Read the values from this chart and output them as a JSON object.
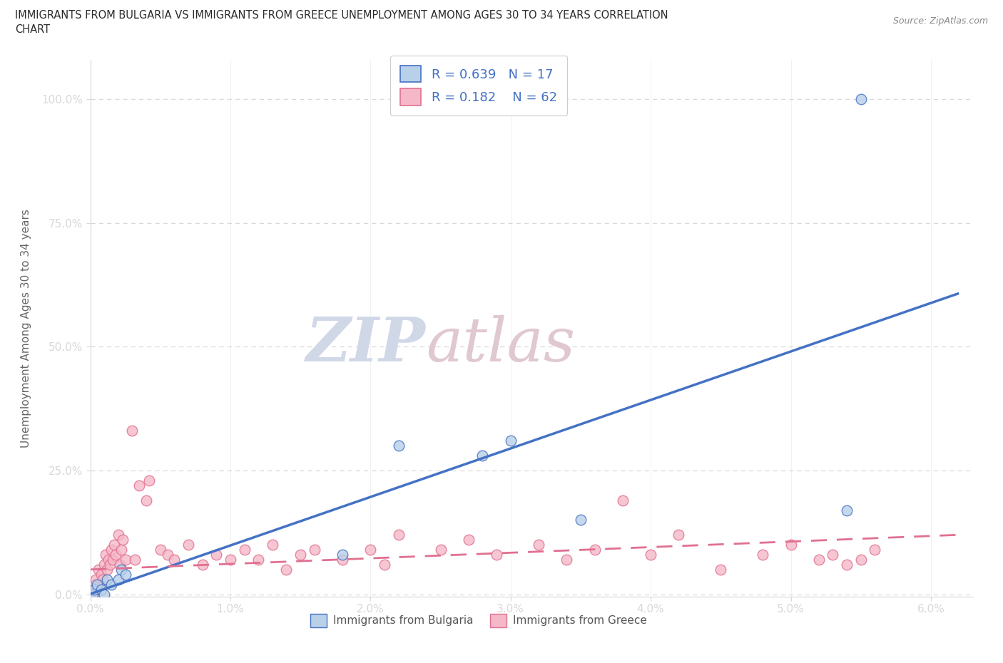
{
  "title_line1": "IMMIGRANTS FROM BULGARIA VS IMMIGRANTS FROM GREECE UNEMPLOYMENT AMONG AGES 30 TO 34 YEARS CORRELATION",
  "title_line2": "CHART",
  "source_text": "Source: ZipAtlas.com",
  "ylabel": "Unemployment Among Ages 30 to 34 years",
  "xlim": [
    0.0,
    0.063
  ],
  "ylim": [
    -0.005,
    1.08
  ],
  "xticks": [
    0.0,
    0.01,
    0.02,
    0.03,
    0.04,
    0.05,
    0.06
  ],
  "xticklabels": [
    "0.0%",
    "1.0%",
    "2.0%",
    "3.0%",
    "4.0%",
    "5.0%",
    "6.0%"
  ],
  "yticks": [
    0.0,
    0.25,
    0.5,
    0.75,
    1.0
  ],
  "yticklabels": [
    "0.0%",
    "25.0%",
    "50.0%",
    "75.0%",
    "100.0%"
  ],
  "bulgaria_face_color": "#b8d0e8",
  "bulgaria_edge_color": "#4472c4",
  "greece_face_color": "#f5b8c8",
  "greece_edge_color": "#e07090",
  "bulgaria_line_color": "#4472c4",
  "greece_line_color": "#e07090",
  "legend_r_bulgaria": "0.639",
  "legend_n_bulgaria": "17",
  "legend_r_greece": "0.182",
  "legend_n_greece": "62",
  "background_color": "#ffffff",
  "grid_color": "#d8d8d8",
  "tick_label_color": "#666666",
  "watermark_color": "#d0d8e8",
  "watermark_color2": "#e0c8d0",
  "bulgaria_x": [
    0.0002,
    0.0003,
    0.0005,
    0.0008,
    0.001,
    0.0012,
    0.0015,
    0.002,
    0.0022,
    0.0025,
    0.018,
    0.022,
    0.028,
    0.03,
    0.035,
    0.054,
    0.055
  ],
  "bulgaria_y": [
    0.0,
    0.01,
    0.02,
    0.01,
    0.0,
    0.03,
    0.02,
    0.03,
    0.05,
    0.04,
    0.08,
    0.3,
    0.28,
    0.31,
    0.15,
    0.17,
    1.0
  ],
  "greece_x": [
    0.0001,
    0.0002,
    0.0003,
    0.0004,
    0.0005,
    0.0006,
    0.0007,
    0.0008,
    0.0009,
    0.001,
    0.0011,
    0.0012,
    0.0013,
    0.0014,
    0.0015,
    0.0016,
    0.0017,
    0.0018,
    0.002,
    0.0021,
    0.0022,
    0.0023,
    0.0025,
    0.003,
    0.0032,
    0.0035,
    0.004,
    0.0042,
    0.005,
    0.0055,
    0.006,
    0.007,
    0.008,
    0.009,
    0.01,
    0.011,
    0.012,
    0.013,
    0.014,
    0.015,
    0.016,
    0.018,
    0.02,
    0.021,
    0.022,
    0.025,
    0.027,
    0.029,
    0.032,
    0.034,
    0.036,
    0.038,
    0.04,
    0.042,
    0.045,
    0.048,
    0.05,
    0.052,
    0.053,
    0.054,
    0.055,
    0.056
  ],
  "greece_y": [
    0.01,
    0.0,
    0.02,
    0.03,
    0.01,
    0.05,
    0.02,
    0.04,
    0.03,
    0.06,
    0.08,
    0.05,
    0.07,
    0.06,
    0.09,
    0.07,
    0.1,
    0.08,
    0.12,
    0.06,
    0.09,
    0.11,
    0.07,
    0.33,
    0.07,
    0.22,
    0.19,
    0.23,
    0.09,
    0.08,
    0.07,
    0.1,
    0.06,
    0.08,
    0.07,
    0.09,
    0.07,
    0.1,
    0.05,
    0.08,
    0.09,
    0.07,
    0.09,
    0.06,
    0.12,
    0.09,
    0.11,
    0.08,
    0.1,
    0.07,
    0.09,
    0.19,
    0.08,
    0.12,
    0.05,
    0.08,
    0.1,
    0.07,
    0.08,
    0.06,
    0.07,
    0.09
  ]
}
